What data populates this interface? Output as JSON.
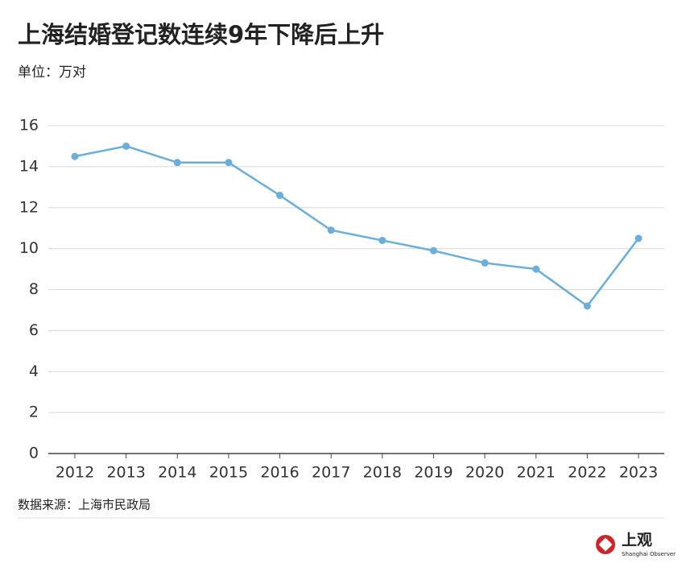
{
  "chart_data": {
    "type": "line",
    "title": "上海结婚登记数连续9年下降后上升",
    "subtitle": "单位：万对",
    "source": "数据来源：上海市民政局",
    "categories": [
      "2012",
      "2013",
      "2014",
      "2015",
      "2016",
      "2017",
      "2018",
      "2019",
      "2020",
      "2021",
      "2022",
      "2023"
    ],
    "series": [
      {
        "color": "#6aaedb",
        "values": [
          14.5,
          15.0,
          14.2,
          14.2,
          12.6,
          10.9,
          10.4,
          9.9,
          9.3,
          9.0,
          7.2,
          10.5
        ]
      }
    ],
    "ylim": [
      0,
      16
    ],
    "yticks": [
      0,
      2,
      4,
      6,
      8,
      10,
      12,
      14,
      16
    ],
    "grid": true
  },
  "logo": {
    "name": "上观",
    "subtitle": "Shanghai Observer"
  }
}
